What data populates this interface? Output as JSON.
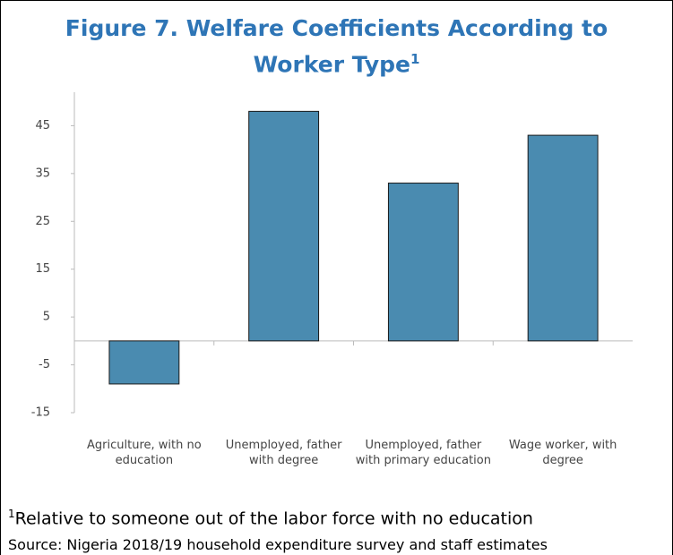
{
  "chart_data": {
    "type": "bar",
    "title": "Figure 7. Welfare Coefficients According to Worker Type",
    "title_note_marker": "1",
    "categories": [
      "Agriculture, with no education",
      "Unemployed, father with degree",
      "Unemployed, father with primary education",
      "Wage worker, with degree"
    ],
    "values": [
      -9,
      48,
      33,
      43
    ],
    "color": "#4a8bb0",
    "ylim": [
      -15,
      52
    ],
    "yticks": [
      -15,
      -5,
      5,
      15,
      25,
      35,
      45
    ],
    "grid": false,
    "footnote_marker": "1",
    "footnote": "Relative to someone out of the labor force with no education",
    "source": "Source:  Nigeria 2018/19 household expenditure survey and staff estimates"
  }
}
